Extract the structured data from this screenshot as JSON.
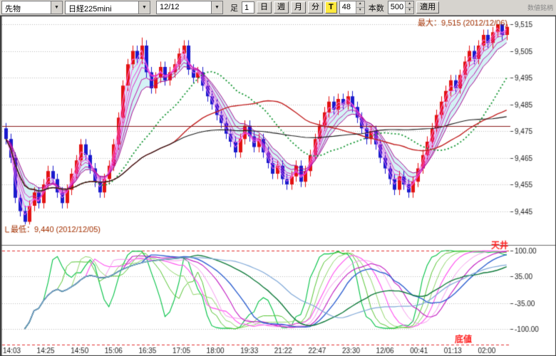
{
  "toolbar": {
    "instrument": "先物",
    "symbol": "日経225mini",
    "date": "12/12",
    "bar_type_label": "足",
    "minute_input": "1",
    "period_day": "日",
    "period_week": "週",
    "period_month": "月",
    "period_minute": "分",
    "period_tick": "T",
    "tick_size_input": "48",
    "bar_count_label": "本数",
    "bar_count_input": "500",
    "apply_button": "適用",
    "corner_label": "数値銘柄"
  },
  "chart_data": {
    "type": "candlestick",
    "symbol": "日経225mini",
    "x_labels": [
      "14:03",
      "14:25",
      "14:50",
      "15:06",
      "16:35",
      "17:05",
      "18:00",
      "19:33",
      "21:22",
      "22:47",
      "23:30",
      "12/06",
      "00:41",
      "01:13",
      "02:00"
    ],
    "price_pane": {
      "y_ticks": [
        9515,
        9505,
        9495,
        9485,
        9475,
        9465,
        9455,
        9445
      ],
      "y_range": [
        9434,
        9518
      ],
      "max_label": "最大：9,515 (2012/12/06)",
      "min_label": "最低：9,440 (2012/12/05)",
      "annotation_color": "#a33000",
      "up_color": "#e31212",
      "down_color": "#1a1acd",
      "candles": [
        [
          9476,
          9478,
          9470,
          9472
        ],
        [
          9472,
          9474,
          9463,
          9465
        ],
        [
          9465,
          9467,
          9448,
          9450
        ],
        [
          9450,
          9452,
          9443,
          9445
        ],
        [
          9445,
          9447,
          9440,
          9441
        ],
        [
          9441,
          9449,
          9440,
          9447
        ],
        [
          9447,
          9454,
          9445,
          9452
        ],
        [
          9452,
          9454,
          9446,
          9448
        ],
        [
          9448,
          9457,
          9446,
          9455
        ],
        [
          9455,
          9462,
          9453,
          9460
        ],
        [
          9460,
          9462,
          9455,
          9457
        ],
        [
          9457,
          9459,
          9450,
          9452
        ],
        [
          9452,
          9454,
          9446,
          9448
        ],
        [
          9448,
          9455,
          9446,
          9453
        ],
        [
          9453,
          9461,
          9451,
          9459
        ],
        [
          9459,
          9466,
          9457,
          9464
        ],
        [
          9464,
          9472,
          9462,
          9470
        ],
        [
          9470,
          9472,
          9464,
          9466
        ],
        [
          9466,
          9468,
          9459,
          9461
        ],
        [
          9461,
          9463,
          9454,
          9456
        ],
        [
          9456,
          9458,
          9450,
          9452
        ],
        [
          9452,
          9459,
          9450,
          9457
        ],
        [
          9457,
          9464,
          9455,
          9462
        ],
        [
          9462,
          9472,
          9460,
          9470
        ],
        [
          9470,
          9482,
          9468,
          9480
        ],
        [
          9480,
          9494,
          9478,
          9492
        ],
        [
          9492,
          9502,
          9490,
          9500
        ],
        [
          9500,
          9507,
          9498,
          9505
        ],
        [
          9505,
          9507,
          9500,
          9502
        ],
        [
          9502,
          9510,
          9500,
          9507
        ],
        [
          9507,
          9509,
          9495,
          9497
        ],
        [
          9497,
          9499,
          9489,
          9491
        ],
        [
          9491,
          9497,
          9489,
          9495
        ],
        [
          9495,
          9501,
          9493,
          9499
        ],
        [
          9499,
          9501,
          9492,
          9494
        ],
        [
          9494,
          9499,
          9492,
          9497
        ],
        [
          9497,
          9502,
          9495,
          9500
        ],
        [
          9500,
          9506,
          9498,
          9504
        ],
        [
          9504,
          9509,
          9502,
          9507
        ],
        [
          9507,
          9509,
          9496,
          9498
        ],
        [
          9498,
          9500,
          9493,
          9495
        ],
        [
          9495,
          9499,
          9493,
          9497
        ],
        [
          9497,
          9499,
          9490,
          9492
        ],
        [
          9492,
          9494,
          9486,
          9488
        ],
        [
          9488,
          9490,
          9483,
          9485
        ],
        [
          9485,
          9487,
          9479,
          9481
        ],
        [
          9481,
          9483,
          9476,
          9478
        ],
        [
          9478,
          9480,
          9472,
          9474
        ],
        [
          9474,
          9476,
          9469,
          9471
        ],
        [
          9471,
          9473,
          9465,
          9467
        ],
        [
          9467,
          9474,
          9465,
          9472
        ],
        [
          9472,
          9479,
          9470,
          9477
        ],
        [
          9477,
          9479,
          9471,
          9473
        ],
        [
          9473,
          9475,
          9467,
          9469
        ],
        [
          9469,
          9474,
          9467,
          9472
        ],
        [
          9472,
          9474,
          9465,
          9467
        ],
        [
          9467,
          9469,
          9461,
          9463
        ],
        [
          9463,
          9465,
          9457,
          9459
        ],
        [
          9459,
          9464,
          9457,
          9462
        ],
        [
          9462,
          9464,
          9455,
          9457
        ],
        [
          9457,
          9459,
          9453,
          9455
        ],
        [
          9455,
          9460,
          9453,
          9458
        ],
        [
          9458,
          9464,
          9456,
          9462
        ],
        [
          9462,
          9464,
          9454,
          9456
        ],
        [
          9456,
          9462,
          9454,
          9460
        ],
        [
          9460,
          9468,
          9458,
          9466
        ],
        [
          9466,
          9474,
          9464,
          9472
        ],
        [
          9472,
          9479,
          9470,
          9477
        ],
        [
          9477,
          9484,
          9475,
          9482
        ],
        [
          9482,
          9488,
          9480,
          9486
        ],
        [
          9486,
          9488,
          9481,
          9483
        ],
        [
          9483,
          9489,
          9481,
          9487
        ],
        [
          9487,
          9489,
          9483,
          9485
        ],
        [
          9485,
          9490,
          9483,
          9488
        ],
        [
          9488,
          9490,
          9482,
          9484
        ],
        [
          9484,
          9486,
          9478,
          9480
        ],
        [
          9480,
          9482,
          9474,
          9476
        ],
        [
          9476,
          9478,
          9470,
          9472
        ],
        [
          9472,
          9477,
          9470,
          9475
        ],
        [
          9475,
          9477,
          9468,
          9470
        ],
        [
          9470,
          9472,
          9463,
          9465
        ],
        [
          9465,
          9467,
          9459,
          9461
        ],
        [
          9461,
          9463,
          9455,
          9457
        ],
        [
          9457,
          9459,
          9451,
          9453
        ],
        [
          9453,
          9460,
          9451,
          9458
        ],
        [
          9458,
          9460,
          9453,
          9455
        ],
        [
          9455,
          9457,
          9450,
          9452
        ],
        [
          9452,
          9458,
          9450,
          9456
        ],
        [
          9456,
          9463,
          9454,
          9461
        ],
        [
          9461,
          9468,
          9459,
          9466
        ],
        [
          9466,
          9473,
          9464,
          9471
        ],
        [
          9471,
          9478,
          9469,
          9476
        ],
        [
          9476,
          9483,
          9474,
          9481
        ],
        [
          9481,
          9488,
          9479,
          9486
        ],
        [
          9486,
          9492,
          9484,
          9490
        ],
        [
          9490,
          9496,
          9488,
          9494
        ],
        [
          9494,
          9496,
          9489,
          9491
        ],
        [
          9491,
          9498,
          9489,
          9496
        ],
        [
          9496,
          9503,
          9494,
          9501
        ],
        [
          9501,
          9507,
          9499,
          9505
        ],
        [
          9505,
          9507,
          9500,
          9502
        ],
        [
          9502,
          9509,
          9500,
          9507
        ],
        [
          9507,
          9513,
          9505,
          9511
        ],
        [
          9511,
          9513,
          9506,
          9508
        ],
        [
          9508,
          9514,
          9506,
          9512
        ],
        [
          9512,
          9515,
          9510,
          9515
        ],
        [
          9515,
          9515,
          9509,
          9511
        ],
        [
          9511,
          9515,
          9509,
          9514
        ]
      ],
      "overlays": {
        "ema_ribbon": {
          "periods": [
            2,
            3,
            4,
            5,
            7,
            9
          ],
          "colors": [
            "#ff77f3",
            "#ff55ea",
            "#f03cd9",
            "#dd28c4",
            "#c315ab",
            "#a80b92"
          ],
          "fill_color": "rgba(160,226,232,0.45)"
        },
        "sma_green_dotted": {
          "period": 20,
          "color": "#149633"
        },
        "sma_red": {
          "period": 35,
          "color": "#c22020"
        },
        "sma_black": {
          "period": 75,
          "color": "#1c1c1c"
        },
        "hline_dark_red": {
          "value": 9477,
          "color": "#8a1a1a"
        }
      }
    },
    "oscillator_pane": {
      "indicator": "RCI",
      "y_ticks": [
        100,
        35,
        -35,
        -100
      ],
      "ceiling_label": "天井",
      "floor_label": "底値",
      "label_color": "#ff2020",
      "guide_color": "#e23030",
      "series": [
        {
          "period": 9,
          "color": "#00c244",
          "width": 1.1
        },
        {
          "period": 12,
          "color": "#55c531",
          "width": 1.0
        },
        {
          "period": 15,
          "color": "#8fd66a",
          "width": 1.0
        },
        {
          "period": 18,
          "color": "#ff4df0",
          "width": 1.1
        },
        {
          "period": 22,
          "color": "#f79aef",
          "width": 1.0
        },
        {
          "period": 26,
          "color": "#c118c1",
          "width": 1.1
        },
        {
          "period": 30,
          "color": "#2d5fd0",
          "width": 1.4
        },
        {
          "period": 40,
          "color": "#0e7a3a",
          "width": 1.4
        },
        {
          "period": 48,
          "color": "#7fa8d8",
          "width": 1.2
        }
      ]
    }
  }
}
